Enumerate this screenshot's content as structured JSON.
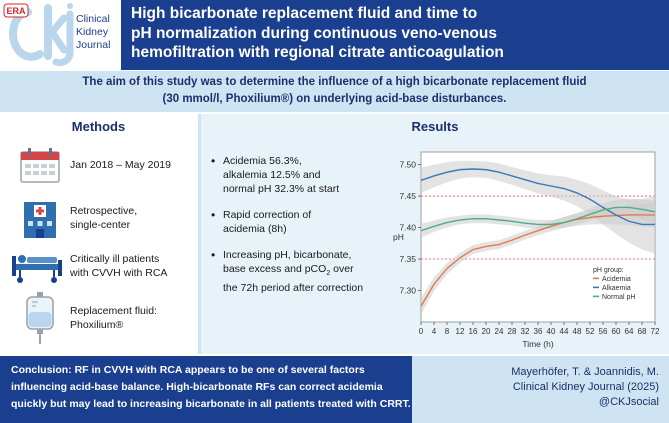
{
  "logo": {
    "era_badge": "ERA",
    "journal_line1": "Clinical",
    "journal_line2": "Kidney",
    "journal_line3": "Journal"
  },
  "header": {
    "title_line1": "High bicarbonate replacement fluid and time to",
    "title_line2": "pH normalization during continuous  veno-venous",
    "title_line3": "hemofiltration with regional citrate anticoagulation"
  },
  "aim": {
    "line1": "The aim of this study was to determine the influence of a high bicarbonate replacement fluid",
    "line2": "(30 mmol/l, Phoxilium®) on underlying acid-base disturbances."
  },
  "methods": {
    "title": "Methods",
    "items": [
      {
        "icon": "calendar-icon",
        "lines": [
          "Jan 2018 – May 2019"
        ]
      },
      {
        "icon": "hospital-icon",
        "lines": [
          "Retrospective,",
          "single-center"
        ]
      },
      {
        "icon": "patient-bed-icon",
        "lines": [
          "Critically ill patients",
          "with CVVH with RCA"
        ]
      },
      {
        "icon": "iv-bag-icon",
        "lines": [
          "Replacement fluid:",
          "Phoxilium®"
        ]
      }
    ]
  },
  "results": {
    "title": "Results",
    "bullets": [
      {
        "lines": [
          "Acidemia 56.3%,",
          "alkalemia 12.5% and",
          "normal pH 32.3% at start"
        ]
      },
      {
        "lines": [
          "Rapid correction of",
          "acidemia (8h)"
        ]
      },
      {
        "lines": [
          "Increasing pH, bicarbonate,",
          "base excess and pCO",
          "over",
          "the 72h period after correction"
        ],
        "subscript": "2"
      }
    ]
  },
  "chart_data": {
    "type": "line",
    "title": "",
    "xlabel": "Time (h)",
    "ylabel": "pH",
    "xlim": [
      0,
      72
    ],
    "ylim": [
      7.25,
      7.52
    ],
    "x_ticks": [
      0,
      4,
      8,
      12,
      16,
      20,
      24,
      28,
      32,
      36,
      40,
      44,
      48,
      52,
      56,
      60,
      64,
      68,
      72
    ],
    "y_ticks": [
      7.3,
      7.35,
      7.4,
      7.45,
      7.5
    ],
    "y_tick_labels": [
      "7.30",
      "7.35",
      "7.40",
      "7.45",
      "7.50"
    ],
    "reference_lines": [
      7.35,
      7.45
    ],
    "legend_title": "pH group:",
    "legend_position": "bottom-right",
    "x": [
      0,
      4,
      8,
      12,
      16,
      20,
      24,
      28,
      32,
      36,
      40,
      44,
      48,
      52,
      56,
      60,
      64,
      68,
      72
    ],
    "series": [
      {
        "name": "Acidemia",
        "color": "#e07b4a",
        "values": [
          7.275,
          7.31,
          7.335,
          7.352,
          7.365,
          7.37,
          7.373,
          7.38,
          7.388,
          7.395,
          7.402,
          7.408,
          7.413,
          7.416,
          7.418,
          7.419,
          7.42,
          7.42,
          7.42
        ],
        "ci_half": [
          0.013,
          0.011,
          0.009,
          0.008,
          0.007,
          0.007,
          0.007,
          0.007,
          0.007,
          0.007,
          0.008,
          0.009,
          0.01,
          0.011,
          0.013,
          0.014,
          0.016,
          0.018,
          0.02
        ]
      },
      {
        "name": "Alkaemia",
        "color": "#3a78b8",
        "values": [
          7.475,
          7.482,
          7.488,
          7.492,
          7.493,
          7.492,
          7.488,
          7.482,
          7.476,
          7.47,
          7.466,
          7.462,
          7.455,
          7.445,
          7.432,
          7.42,
          7.41,
          7.405,
          7.405
        ],
        "ci_half": [
          0.02,
          0.018,
          0.016,
          0.014,
          0.013,
          0.013,
          0.014,
          0.014,
          0.015,
          0.016,
          0.017,
          0.019,
          0.021,
          0.024,
          0.027,
          0.03,
          0.034,
          0.04,
          0.046
        ]
      },
      {
        "name": "Normal pH",
        "color": "#4fae86",
        "values": [
          7.395,
          7.402,
          7.408,
          7.412,
          7.414,
          7.414,
          7.412,
          7.41,
          7.407,
          7.405,
          7.405,
          7.408,
          7.414,
          7.421,
          7.428,
          7.432,
          7.432,
          7.429,
          7.425
        ],
        "ci_half": [
          0.011,
          0.009,
          0.008,
          0.007,
          0.007,
          0.007,
          0.007,
          0.007,
          0.007,
          0.007,
          0.007,
          0.008,
          0.009,
          0.01,
          0.011,
          0.012,
          0.014,
          0.016,
          0.018
        ]
      }
    ]
  },
  "footer": {
    "conclusion_line1": "Conclusion: RF in CVVH with RCA appears to be one of several factors",
    "conclusion_line2": "influencing acid-base balance. High-bicarbonate RFs can correct acidemia",
    "conclusion_line3": "quickly but may lead to increasing bicarbonate in all patients treated with CRRT.",
    "citation_line1": "Mayerhöfer, T. & Joannidis, M.",
    "citation_line2": "Clinical Kidney Journal (2025)",
    "citation_line3": "@CKJsocial"
  },
  "colors": {
    "header_blue": "#1b3f8f",
    "light_blue": "#cfe4f2",
    "results_bg": "#e8f2f9",
    "band_grey": "#cccccc",
    "ref_line_red": "#d9534f"
  }
}
